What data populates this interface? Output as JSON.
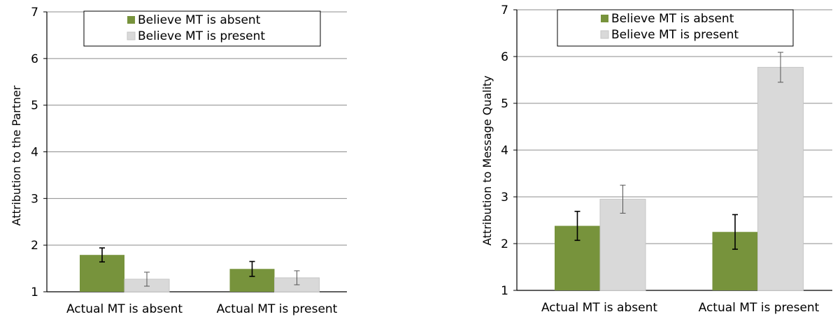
{
  "chart_data": [
    {
      "type": "bar",
      "title": "",
      "xlabel": "",
      "ylabel": "Attribution to the Partner",
      "ylim": [
        1,
        7
      ],
      "yticks": [
        1,
        2,
        3,
        4,
        5,
        6,
        7
      ],
      "grid": true,
      "legend_position": "top",
      "categories": [
        "Actual MT is absent",
        "Actual MT is present"
      ],
      "series": [
        {
          "name": "Believe MT is absent",
          "color": "#77933c",
          "values": [
            1.79,
            1.49
          ],
          "error": [
            0.15,
            0.16
          ]
        },
        {
          "name": "Believe MT is present",
          "color": "#d9d9d9",
          "values": [
            1.27,
            1.3
          ],
          "error": [
            0.15,
            0.15
          ]
        }
      ]
    },
    {
      "type": "bar",
      "title": "",
      "xlabel": "",
      "ylabel": "Attribution to Message Quality",
      "ylim": [
        1,
        7
      ],
      "yticks": [
        1,
        2,
        3,
        4,
        5,
        6,
        7
      ],
      "grid": true,
      "legend_position": "top",
      "categories": [
        "Actual MT is absent",
        "Actual MT is present"
      ],
      "series": [
        {
          "name": "Believe MT is absent",
          "color": "#77933c",
          "values": [
            2.38,
            2.25
          ],
          "error": [
            0.31,
            0.37
          ]
        },
        {
          "name": "Believe MT is present",
          "color": "#d9d9d9",
          "values": [
            2.95,
            5.77
          ],
          "error": [
            0.3,
            0.32
          ]
        }
      ]
    }
  ]
}
